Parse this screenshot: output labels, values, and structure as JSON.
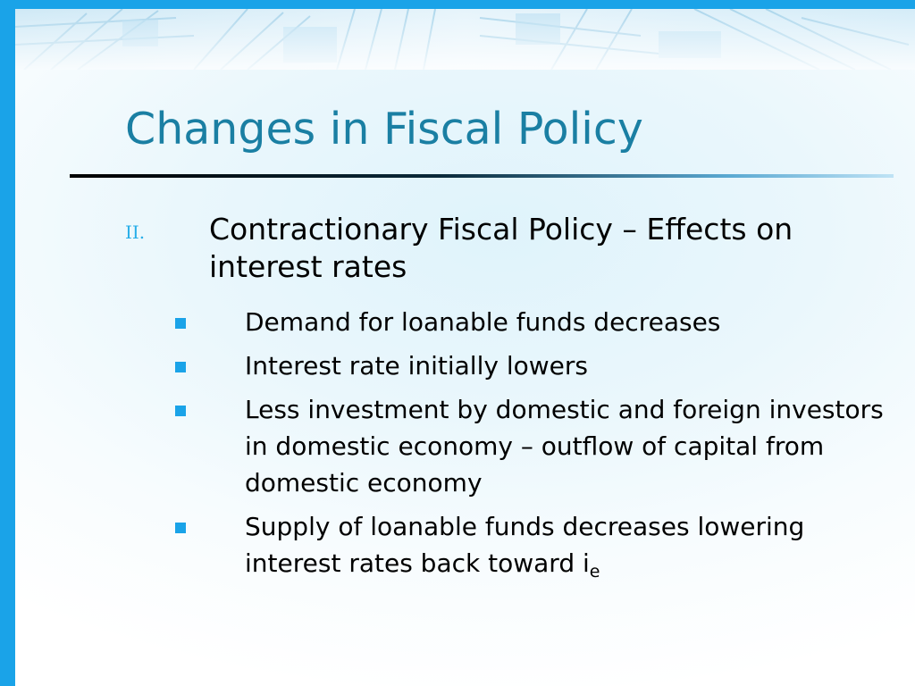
{
  "slide": {
    "title": "Changes in Fiscal Policy",
    "accent_color": "#1aa3e8",
    "title_color": "#1a7fa3",
    "point": {
      "numeral": "II.",
      "text": "Contractionary Fiscal Policy – Effects on interest rates",
      "bullets": [
        {
          "text": "Demand for loanable funds decreases"
        },
        {
          "text": "Interest rate initially lowers"
        },
        {
          "text": "Less investment by domestic and foreign investors in domestic economy – outflow of capital from domestic economy"
        },
        {
          "text": "Supply of loanable funds decreases lowering interest rates back toward i",
          "subscript": "e"
        }
      ]
    }
  }
}
